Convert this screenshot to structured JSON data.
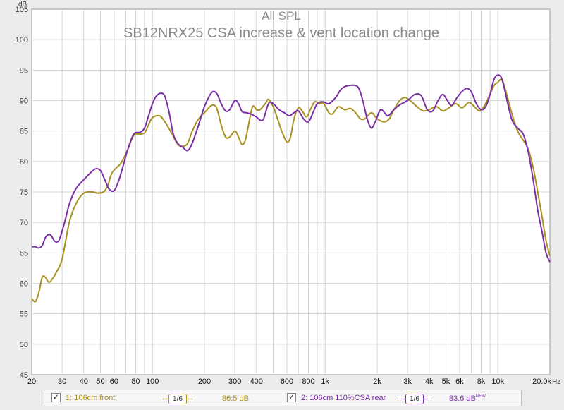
{
  "chart_data": {
    "type": "line",
    "title": "All SPL",
    "subtitle": "SB12NRX25 CSA increase & vent location change",
    "ylabel": "dB",
    "xlabel": "Hz",
    "x_scale": "log",
    "xlim": [
      20,
      20000
    ],
    "ylim": [
      45,
      105
    ],
    "grid": true,
    "y_ticks": [
      45,
      50,
      55,
      60,
      65,
      70,
      75,
      80,
      85,
      90,
      95,
      100,
      105
    ],
    "x_ticks": [
      {
        "value": 20,
        "label": "20"
      },
      {
        "value": 30,
        "label": "30"
      },
      {
        "value": 40,
        "label": "40"
      },
      {
        "value": 50,
        "label": "50"
      },
      {
        "value": 60,
        "label": "60"
      },
      {
        "value": 80,
        "label": "80"
      },
      {
        "value": 100,
        "label": "100"
      },
      {
        "value": 200,
        "label": "200"
      },
      {
        "value": 300,
        "label": "300"
      },
      {
        "value": 400,
        "label": "400"
      },
      {
        "value": 600,
        "label": "600"
      },
      {
        "value": 800,
        "label": "800"
      },
      {
        "value": 1000,
        "label": "1k"
      },
      {
        "value": 2000,
        "label": "2k"
      },
      {
        "value": 3000,
        "label": "3k"
      },
      {
        "value": 4000,
        "label": "4k"
      },
      {
        "value": 5000,
        "label": "5k"
      },
      {
        "value": 6000,
        "label": "6k"
      },
      {
        "value": 8000,
        "label": "8k"
      },
      {
        "value": 10000,
        "label": "10k"
      },
      {
        "value": 20000,
        "label": "20.0k"
      }
    ],
    "series": [
      {
        "name": "1: 106cm front",
        "color": "#a89020",
        "points": [
          [
            20,
            57.5
          ],
          [
            21,
            57
          ],
          [
            22,
            58.5
          ],
          [
            23,
            61
          ],
          [
            24,
            61
          ],
          [
            25,
            60.2
          ],
          [
            26,
            60.5
          ],
          [
            28,
            62
          ],
          [
            30,
            64
          ],
          [
            33,
            70
          ],
          [
            36,
            73
          ],
          [
            40,
            74.8
          ],
          [
            45,
            75
          ],
          [
            48,
            74.8
          ],
          [
            52,
            75
          ],
          [
            55,
            76
          ],
          [
            58,
            78
          ],
          [
            62,
            79
          ],
          [
            66,
            79.8
          ],
          [
            72,
            82
          ],
          [
            78,
            84.3
          ],
          [
            85,
            84.5
          ],
          [
            90,
            84.7
          ],
          [
            95,
            86
          ],
          [
            100,
            87.2
          ],
          [
            110,
            87.5
          ],
          [
            118,
            86.5
          ],
          [
            130,
            84.5
          ],
          [
            140,
            82.8
          ],
          [
            150,
            82.5
          ],
          [
            160,
            83
          ],
          [
            170,
            85
          ],
          [
            185,
            87
          ],
          [
            200,
            88
          ],
          [
            220,
            89.2
          ],
          [
            235,
            88.8
          ],
          [
            250,
            86
          ],
          [
            265,
            84
          ],
          [
            280,
            84
          ],
          [
            300,
            85
          ],
          [
            315,
            84
          ],
          [
            330,
            82.8
          ],
          [
            345,
            83.5
          ],
          [
            360,
            86
          ],
          [
            380,
            89
          ],
          [
            400,
            88.5
          ],
          [
            420,
            88.5
          ],
          [
            450,
            89.5
          ],
          [
            470,
            90.2
          ],
          [
            500,
            89
          ],
          [
            530,
            87
          ],
          [
            560,
            85
          ],
          [
            600,
            83.2
          ],
          [
            630,
            84
          ],
          [
            660,
            87
          ],
          [
            700,
            88.8
          ],
          [
            740,
            88.2
          ],
          [
            780,
            87.3
          ],
          [
            820,
            88.5
          ],
          [
            870,
            89.8
          ],
          [
            920,
            89.5
          ],
          [
            980,
            89.5
          ],
          [
            1050,
            88
          ],
          [
            1100,
            87.8
          ],
          [
            1150,
            88.5
          ],
          [
            1200,
            89
          ],
          [
            1300,
            88.5
          ],
          [
            1400,
            88.7
          ],
          [
            1500,
            88
          ],
          [
            1600,
            87
          ],
          [
            1700,
            87
          ],
          [
            1850,
            88
          ],
          [
            2000,
            87
          ],
          [
            2200,
            86.5
          ],
          [
            2350,
            87
          ],
          [
            2500,
            88.5
          ],
          [
            2700,
            90
          ],
          [
            2900,
            90.5
          ],
          [
            3100,
            90
          ],
          [
            3400,
            89
          ],
          [
            3700,
            88.3
          ],
          [
            4000,
            88.5
          ],
          [
            4400,
            89
          ],
          [
            4800,
            88.3
          ],
          [
            5200,
            88.8
          ],
          [
            5700,
            89.5
          ],
          [
            6200,
            88.8
          ],
          [
            6800,
            89.7
          ],
          [
            7300,
            89
          ],
          [
            7800,
            88.3
          ],
          [
            8300,
            89
          ],
          [
            9000,
            91
          ],
          [
            9500,
            92.5
          ],
          [
            10000,
            93
          ],
          [
            10500,
            93.5
          ],
          [
            11000,
            92
          ],
          [
            12000,
            88
          ],
          [
            13000,
            85
          ],
          [
            14000,
            83.5
          ],
          [
            15000,
            82
          ],
          [
            16000,
            79
          ],
          [
            17000,
            75
          ],
          [
            18000,
            71
          ],
          [
            19000,
            67
          ],
          [
            20000,
            64.5
          ]
        ]
      },
      {
        "name": "2: 106cm 110%CSA rear",
        "color": "#7b2fa6",
        "points": [
          [
            20,
            66
          ],
          [
            21,
            66
          ],
          [
            22,
            65.8
          ],
          [
            23,
            66.2
          ],
          [
            24,
            67.5
          ],
          [
            25,
            68
          ],
          [
            26,
            67.8
          ],
          [
            27,
            67
          ],
          [
            28,
            66.8
          ],
          [
            29,
            67.3
          ],
          [
            31,
            70
          ],
          [
            33,
            73
          ],
          [
            36,
            75.5
          ],
          [
            40,
            77
          ],
          [
            44,
            78.2
          ],
          [
            47,
            78.8
          ],
          [
            50,
            78.5
          ],
          [
            53,
            77
          ],
          [
            56,
            75.5
          ],
          [
            60,
            75.2
          ],
          [
            64,
            77
          ],
          [
            68,
            79.5
          ],
          [
            72,
            82
          ],
          [
            78,
            84.5
          ],
          [
            85,
            84.8
          ],
          [
            90,
            85.5
          ],
          [
            95,
            87.5
          ],
          [
            100,
            89.5
          ],
          [
            105,
            90.7
          ],
          [
            112,
            91.2
          ],
          [
            118,
            90.7
          ],
          [
            125,
            88
          ],
          [
            132,
            84.5
          ],
          [
            140,
            83
          ],
          [
            150,
            82.3
          ],
          [
            160,
            81.8
          ],
          [
            170,
            83
          ],
          [
            185,
            86
          ],
          [
            200,
            89
          ],
          [
            220,
            91.3
          ],
          [
            235,
            91.2
          ],
          [
            250,
            89.5
          ],
          [
            265,
            88.3
          ],
          [
            280,
            88.5
          ],
          [
            300,
            90
          ],
          [
            315,
            89.5
          ],
          [
            330,
            88.2
          ],
          [
            350,
            88
          ],
          [
            370,
            87.8
          ],
          [
            400,
            87.3
          ],
          [
            420,
            86.8
          ],
          [
            440,
            87
          ],
          [
            470,
            89.5
          ],
          [
            500,
            89.5
          ],
          [
            540,
            88.5
          ],
          [
            580,
            88
          ],
          [
            620,
            87.5
          ],
          [
            660,
            88
          ],
          [
            700,
            88.3
          ],
          [
            750,
            87
          ],
          [
            800,
            86.5
          ],
          [
            850,
            88
          ],
          [
            900,
            89.5
          ],
          [
            970,
            89.8
          ],
          [
            1050,
            89.5
          ],
          [
            1150,
            90.5
          ],
          [
            1250,
            92
          ],
          [
            1400,
            92.5
          ],
          [
            1550,
            92.2
          ],
          [
            1650,
            90
          ],
          [
            1750,
            87
          ],
          [
            1850,
            85.5
          ],
          [
            1950,
            86.5
          ],
          [
            2100,
            88.5
          ],
          [
            2300,
            87.5
          ],
          [
            2500,
            88.5
          ],
          [
            2700,
            89.3
          ],
          [
            3000,
            90
          ],
          [
            3300,
            91
          ],
          [
            3600,
            90.8
          ],
          [
            3900,
            88.5
          ],
          [
            4200,
            88.3
          ],
          [
            4500,
            90
          ],
          [
            4800,
            91
          ],
          [
            5100,
            90
          ],
          [
            5400,
            89.2
          ],
          [
            5800,
            90.5
          ],
          [
            6200,
            91.5
          ],
          [
            6600,
            92
          ],
          [
            7000,
            91.5
          ],
          [
            7500,
            89.5
          ],
          [
            8000,
            88.5
          ],
          [
            8500,
            89
          ],
          [
            9000,
            91
          ],
          [
            9500,
            93.5
          ],
          [
            10000,
            94.2
          ],
          [
            10500,
            93.7
          ],
          [
            11000,
            91.5
          ],
          [
            12000,
            87
          ],
          [
            13000,
            85.5
          ],
          [
            14000,
            84.5
          ],
          [
            15000,
            81.5
          ],
          [
            16000,
            77
          ],
          [
            17000,
            72
          ],
          [
            18000,
            68.5
          ],
          [
            19000,
            65
          ],
          [
            20000,
            63.5
          ]
        ]
      }
    ]
  },
  "legend": {
    "item1": {
      "check": "✓",
      "name": "1: 106cm front",
      "smoothing": "1/6",
      "level": "86.5 dB",
      "color": "#a89020"
    },
    "item2": {
      "check": "✓",
      "name": "2: 106cm 110%CSA rear",
      "smoothing": "1/6",
      "level": "83.6 dB",
      "badge": "NEW",
      "color": "#7b2fa6"
    }
  }
}
